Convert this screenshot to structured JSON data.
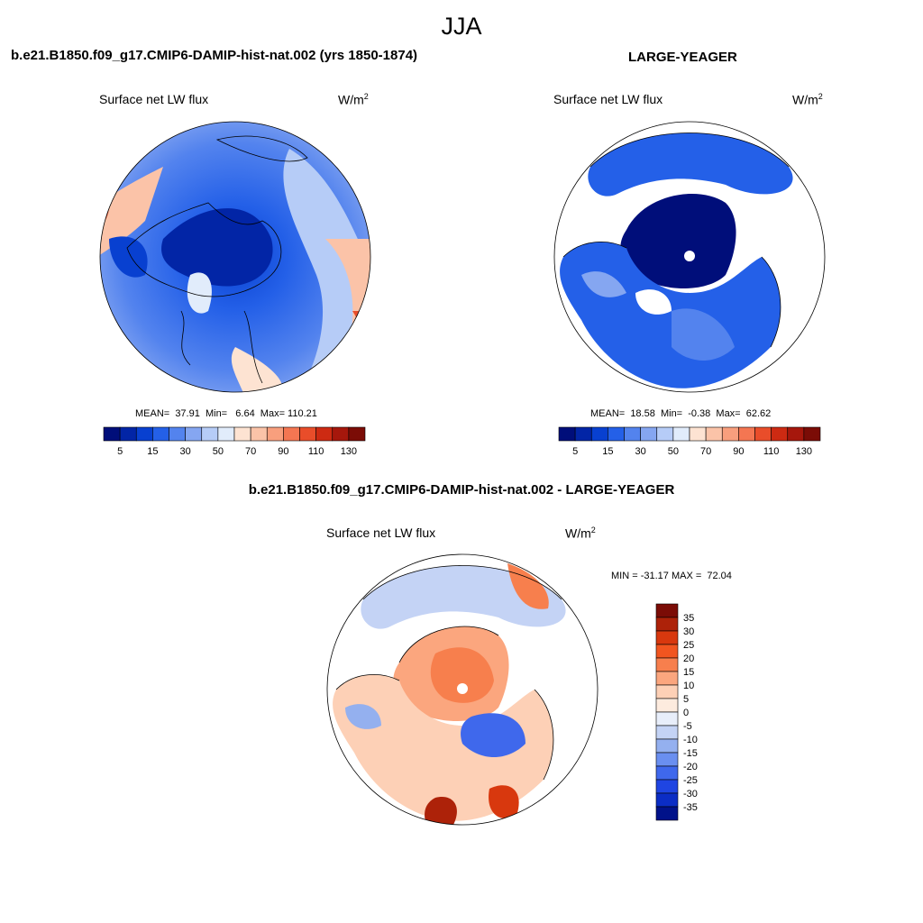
{
  "figure_title": "JJA",
  "panels": [
    {
      "title": "b.e21.B1850.f09_g17.CMIP6-DAMIP-hist-nat.002 (yrs 1850-1874)",
      "variable": "Surface net LW flux",
      "units_base": "W/m",
      "units_exp": "2",
      "stats_text": "MEAN=  37.91  Min=   6.64  Max= 110.21"
    },
    {
      "title": "LARGE-YEAGER",
      "variable": "Surface net LW flux",
      "units_base": "W/m",
      "units_exp": "2",
      "stats_text": "MEAN=  18.58  Min=  -0.38  Max=  62.62"
    },
    {
      "title": "b.e21.B1850.f09_g17.CMIP6-DAMIP-hist-nat.002 - LARGE-YEAGER",
      "variable": "Surface net LW flux",
      "units_base": "W/m",
      "units_exp": "2",
      "stats_text": "MIN = -31.17 MAX =  72.04"
    }
  ],
  "chart_data": [
    {
      "type": "heatmap",
      "projection": "north polar stereographic",
      "title": "b.e21.B1850.f09_g17.CMIP6-DAMIP-hist-nat.002 (yrs 1850-1874)",
      "variable": "Surface net LW flux",
      "units": "W/m2",
      "mean": 37.91,
      "min": 6.64,
      "max": 110.21,
      "colorbar_orientation": "horizontal",
      "colorbar_colors": [
        "#000e7a",
        "#0225a6",
        "#0840d0",
        "#2460e8",
        "#5383ee",
        "#85a6f1",
        "#b6ccf7",
        "#e1ecfb",
        "#fde3d2",
        "#fbc3a8",
        "#f89f7d",
        "#f47652",
        "#e94d2a",
        "#cd2a12",
        "#a6170c",
        "#7b0c06"
      ],
      "colorbar_ticks": [
        "5",
        "15",
        "30",
        "50",
        "70",
        "90",
        "110",
        "130"
      ]
    },
    {
      "type": "heatmap",
      "projection": "north polar stereographic",
      "title": "LARGE-YEAGER",
      "variable": "Surface net LW flux",
      "units": "W/m2",
      "mean": 18.58,
      "min": -0.38,
      "max": 62.62,
      "colorbar_orientation": "horizontal",
      "colorbar_colors": [
        "#000e7a",
        "#0225a6",
        "#0840d0",
        "#2460e8",
        "#5383ee",
        "#85a6f1",
        "#b6ccf7",
        "#e1ecfb",
        "#fde3d2",
        "#fbc3a8",
        "#f89f7d",
        "#f47652",
        "#e94d2a",
        "#cd2a12",
        "#a6170c",
        "#7b0c06"
      ],
      "colorbar_ticks": [
        "5",
        "15",
        "30",
        "50",
        "70",
        "90",
        "110",
        "130"
      ]
    },
    {
      "type": "heatmap",
      "projection": "north polar stereographic",
      "title": "b.e21.B1850.f09_g17.CMIP6-DAMIP-hist-nat.002 - LARGE-YEAGER",
      "variable": "Surface net LW flux",
      "units": "W/m2",
      "min": -31.17,
      "max": 72.04,
      "colorbar_orientation": "vertical",
      "colorbar_colors": [
        "#7b0c06",
        "#ad2209",
        "#d8380e",
        "#f15520",
        "#f77f4d",
        "#fba67e",
        "#fdd0b6",
        "#fdebde",
        "#e8eefa",
        "#c4d3f5",
        "#94b0ef",
        "#6a8ff0",
        "#3f68ec",
        "#1f45e2",
        "#0b2dc5",
        "#01128a"
      ],
      "colorbar_ticks": [
        "35",
        "30",
        "25",
        "20",
        "15",
        "10",
        "5",
        "0",
        "-5",
        "-10",
        "-15",
        "-20",
        "-25",
        "-30",
        "-35"
      ]
    }
  ]
}
